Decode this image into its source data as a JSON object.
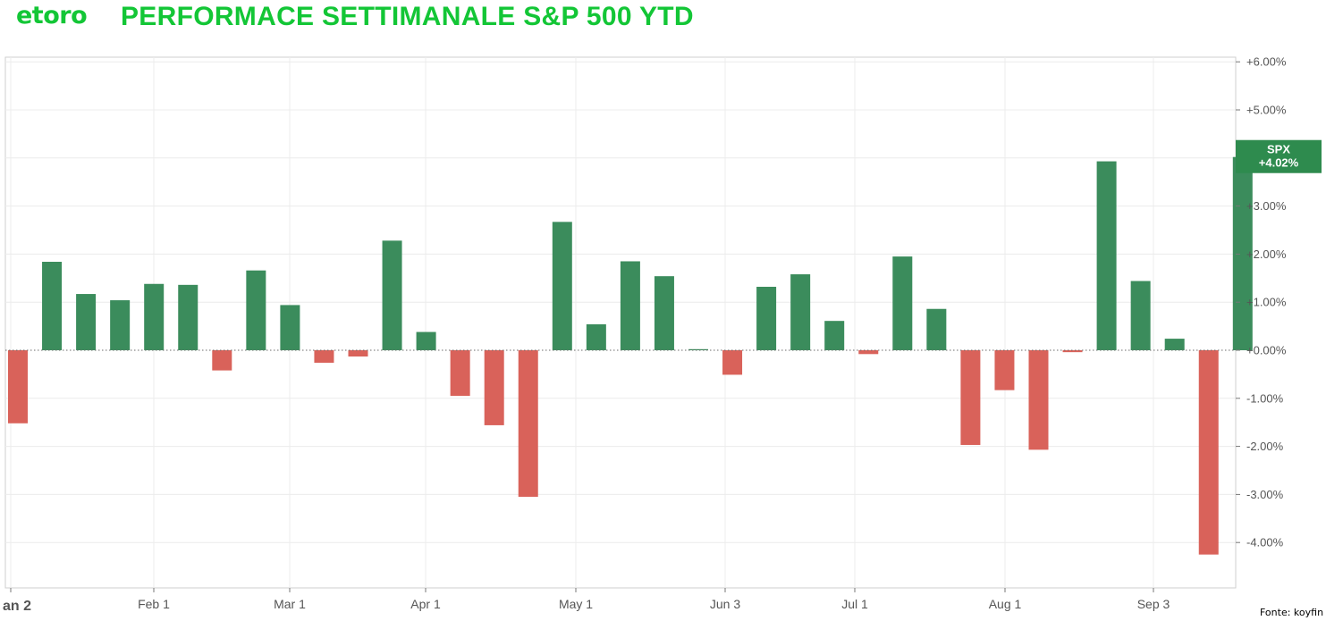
{
  "header": {
    "logo_text": "etoro",
    "title": "PERFORMACE SETTIMANALE S&P 500 YTD"
  },
  "source": "Fonte: koyfin",
  "colors": {
    "brand": "#13c636",
    "positive": "#3b8c5c",
    "negative": "#d9625a",
    "badge": "#2e8b4e",
    "grid": "#ececec",
    "axis_text": "#555555"
  },
  "badge": {
    "symbol": "SPX",
    "value": "+4.02%"
  },
  "chart_data": {
    "type": "bar",
    "x_tick_labels": [
      "an 2",
      "Feb 1",
      "Mar 1",
      "Apr 1",
      "May 1",
      "Jun 3",
      "Jul 1",
      "Aug 1",
      "Sep 3"
    ],
    "y_tick_labels": [
      "+6.00%",
      "+5.00%",
      "+4.00%",
      "+3.00%",
      "+2.00%",
      "+1.00%",
      "+0.00%",
      "-1.00%",
      "-2.00%",
      "-3.00%",
      "-4.00%"
    ],
    "ylim": [
      -4.7,
      6.1
    ],
    "y_unit": "%",
    "grid": true,
    "values": [
      -1.52,
      1.84,
      1.17,
      1.04,
      1.38,
      1.36,
      -0.42,
      1.66,
      0.94,
      -0.26,
      -0.13,
      2.28,
      0.38,
      -0.95,
      -1.56,
      -3.05,
      2.67,
      0.54,
      1.85,
      1.54,
      0.02,
      -0.51,
      1.32,
      1.58,
      0.61,
      -0.08,
      1.95,
      0.86,
      -1.97,
      -0.83,
      -2.07,
      -0.04,
      3.93,
      1.44,
      0.24,
      -4.25,
      4.02
    ]
  }
}
